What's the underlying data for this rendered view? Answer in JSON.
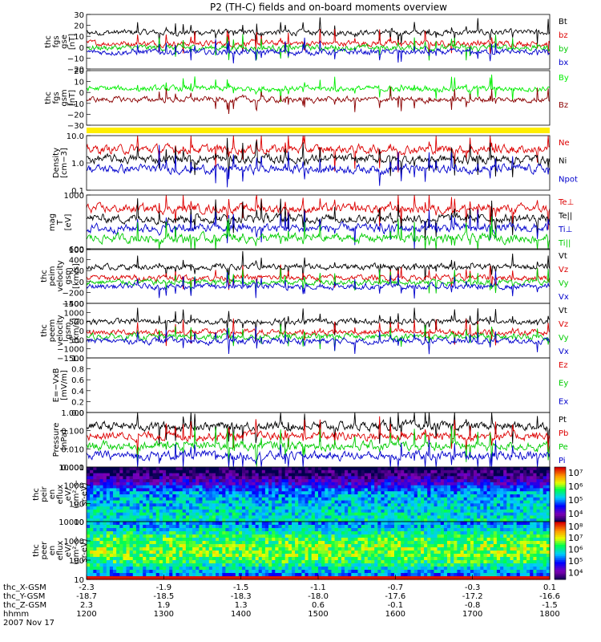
{
  "chart_data": {
    "type": "line",
    "title": "P2 (TH-C) fields and on-board moments overview",
    "x_labels": [
      "1200",
      "1300",
      "1400",
      "1500",
      "1600",
      "1700",
      "1800"
    ],
    "ephemeris": {
      "rows": [
        {
          "label": "thc_X-GSM",
          "values": [
            "-2.3",
            "-1.9",
            "-1.5",
            "-1.1",
            "-0.7",
            "-0.3",
            "0.1"
          ]
        },
        {
          "label": "thc_Y-GSM",
          "values": [
            "-18.7",
            "-18.5",
            "-18.3",
            "-18.0",
            "-17.6",
            "-17.2",
            "-16.6"
          ]
        },
        {
          "label": "thc_Z-GSM",
          "values": [
            "2.3",
            "1.9",
            "1.3",
            "0.6",
            "-0.1",
            "-0.8",
            "-1.5"
          ]
        },
        {
          "label": "hhmm",
          "values": [
            "1200",
            "1300",
            "1400",
            "1500",
            "1600",
            "1700",
            "1800"
          ]
        }
      ],
      "date": "2007 Nov 17"
    },
    "panels": [
      {
        "id": "fgs-gse",
        "ylabel": [
          "thc",
          "fgs",
          "gse",
          "[nT]"
        ],
        "ylim": [
          -20,
          30
        ],
        "ticks": [
          "30",
          "20",
          "10",
          "0",
          "−10",
          "−20"
        ],
        "series": [
          {
            "name": "Bt",
            "color": "#000000"
          },
          {
            "name": "bz",
            "color": "#dd0000"
          },
          {
            "name": "by",
            "color": "#00cc00"
          },
          {
            "name": "bx",
            "color": "#0000cc"
          }
        ]
      },
      {
        "id": "fgs-gsm",
        "ylabel": [
          "thc",
          "fgs",
          "gsm",
          "[nT]"
        ],
        "ylim": [
          -35,
          20
        ],
        "ticks": [
          "20",
          "10",
          "0",
          "−10",
          "−20",
          "−30"
        ],
        "series": [
          {
            "name": "By",
            "color": "#00ee00"
          },
          {
            "name": "Bz",
            "color": "#8b0000"
          }
        ]
      },
      {
        "id": "density",
        "ylabel": [
          "Density",
          "[cm−3]"
        ],
        "ylim": [
          0.1,
          10
        ],
        "log": true,
        "ticks": [
          "10.0",
          "1.0",
          "0.1"
        ],
        "series": [
          {
            "name": "Ne",
            "color": "#dd0000"
          },
          {
            "name": "Ni",
            "color": "#000000"
          },
          {
            "name": "Npot",
            "color": "#0000cc"
          }
        ]
      },
      {
        "id": "temperature",
        "ylabel": [
          "mag",
          "T",
          "[eV]"
        ],
        "ylim": [
          40,
          6000
        ],
        "log": true,
        "ticks": [
          "1000",
          "100"
        ],
        "series": [
          {
            "name": "Te⊥",
            "color": "#dd0000"
          },
          {
            "name": "Te||",
            "color": "#000000"
          },
          {
            "name": "Ti⊥",
            "color": "#0000cc"
          },
          {
            "name": "Ti||",
            "color": "#00cc00"
          }
        ]
      },
      {
        "id": "peim-velocity",
        "ylabel": [
          "thc",
          "peim",
          "velocity",
          "gsm",
          "[km/s]"
        ],
        "ylim": [
          -400,
          600
        ],
        "ticks": [
          "600",
          "400",
          "200",
          "0",
          "−200",
          "−400"
        ],
        "series": [
          {
            "name": "Vt",
            "color": "#000000"
          },
          {
            "name": "Vz",
            "color": "#dd0000"
          },
          {
            "name": "Vy",
            "color": "#00cc00"
          },
          {
            "name": "Vx",
            "color": "#0000cc"
          }
        ]
      },
      {
        "id": "peem-velocity",
        "ylabel": [
          "thc",
          "peem",
          "velocity",
          "gsm",
          "[km/s]"
        ],
        "ylim": [
          -1500,
          1500
        ],
        "ticks": [
          "1500",
          "1000",
          "500",
          "0",
          "−500",
          "−1000",
          "−1500"
        ],
        "series": [
          {
            "name": "Vt",
            "color": "#000000"
          },
          {
            "name": "Vz",
            "color": "#dd0000"
          },
          {
            "name": "Vy",
            "color": "#00cc00"
          },
          {
            "name": "Vx",
            "color": "#0000cc"
          }
        ]
      },
      {
        "id": "efield",
        "ylabel": [
          "E=−VxB",
          "[mV/m]"
        ],
        "ylim": [
          0,
          1
        ],
        "ticks": [
          "1.0",
          "0.8",
          "0.6",
          "0.4",
          "0.2",
          "0.0"
        ],
        "series": [
          {
            "name": "Ez",
            "color": "#dd0000"
          },
          {
            "name": "Ey",
            "color": "#00cc00"
          },
          {
            "name": "Ex",
            "color": "#0000cc"
          }
        ]
      },
      {
        "id": "pressure",
        "ylabel": [
          "Pressure",
          "[nPa]"
        ],
        "ylim": [
          0.001,
          1
        ],
        "log": true,
        "ticks": [
          "1.000",
          "0.100",
          "0.010",
          "0.001"
        ],
        "series": [
          {
            "name": "Pt",
            "color": "#000000"
          },
          {
            "name": "Pb",
            "color": "#dd0000"
          },
          {
            "name": "Pe",
            "color": "#00cc00"
          },
          {
            "name": "Pi",
            "color": "#0000cc"
          }
        ]
      },
      {
        "id": "peir-spec",
        "ylabel": [
          "thc",
          "peir",
          "en",
          "eflux",
          "eV/",
          "(cm²-s-",
          "sr-eV)"
        ],
        "ylim": [
          10,
          20000
        ],
        "log": true,
        "ticks": [
          "10000",
          "1000",
          "100",
          "10"
        ],
        "colorbar": {
          "min_exp": 3.5,
          "max_exp": 7,
          "labels": [
            "10⁴",
            "10⁵",
            "10⁶",
            "10⁷"
          ]
        }
      },
      {
        "id": "peer-spec",
        "ylabel": [
          "thc",
          "peer",
          "en",
          "eflux",
          "eV/",
          "(cm²-s-",
          "sr-eV)"
        ],
        "ylim": [
          7,
          30000
        ],
        "log": true,
        "ticks": [
          "10000",
          "1000",
          "100",
          "10"
        ],
        "colorbar": {
          "min_exp": 3.5,
          "max_exp": 8,
          "labels": [
            "10⁴",
            "10⁵",
            "10⁶",
            "10⁷",
            "10⁸"
          ]
        }
      }
    ]
  }
}
